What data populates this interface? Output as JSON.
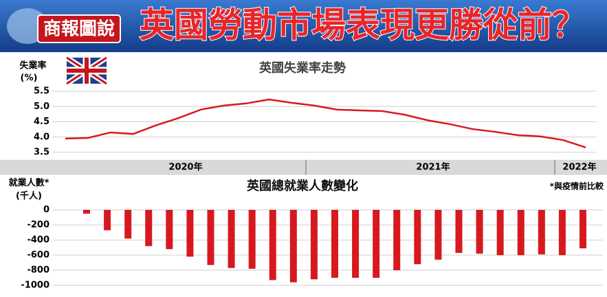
{
  "header": {
    "badge": "商報圖說",
    "title": "英國勞動市場表現更勝從前？"
  },
  "chart_data": [
    {
      "type": "line",
      "title": "英國失業率走勢",
      "ylabel": "失業率",
      "ylabel_unit": "(%)",
      "categories": [
        null,
        null,
        null,
        null,
        null,
        null,
        null,
        null,
        null,
        null,
        null,
        null,
        null,
        null,
        null,
        null,
        null,
        null,
        null,
        null,
        null,
        null,
        null,
        null
      ],
      "values": [
        3.95,
        3.97,
        4.15,
        4.1,
        4.38,
        4.62,
        4.9,
        5.03,
        5.1,
        5.23,
        5.12,
        5.03,
        4.9,
        4.87,
        4.85,
        4.73,
        4.55,
        4.42,
        4.26,
        4.17,
        4.06,
        4.02,
        3.9,
        3.66
      ],
      "color": "#d7191f",
      "ylim": [
        3.5,
        5.5
      ],
      "yticks": [
        3.5,
        {
          "value": 4,
          "label": "4.0"
        },
        4.5,
        {
          "value": 5,
          "label": "5.0"
        },
        5.5
      ],
      "year_labels": [
        "2020年",
        "2021年",
        "2022年"
      ],
      "grid": true
    },
    {
      "type": "bar",
      "title": "英國總就業人數變化",
      "ylabel": "就業人數*",
      "ylabel_unit": "(千人)",
      "note": "*與疫情前比較",
      "categories": [
        null,
        null,
        null,
        null,
        null,
        null,
        null,
        null,
        null,
        null,
        null,
        null,
        null,
        null,
        null,
        null,
        null,
        null,
        null,
        null,
        null,
        null,
        null,
        null,
        null
      ],
      "values": [
        -50,
        -270,
        -380,
        -480,
        -520,
        -620,
        -730,
        -770,
        -780,
        -930,
        -960,
        -920,
        -900,
        -900,
        -900,
        -800,
        -720,
        -660,
        -570,
        -580,
        -600,
        -600,
        -590,
        -600,
        -510
      ],
      "color": "#d7191f",
      "ylim": [
        -1000,
        0
      ],
      "yticks": [
        0,
        -200,
        -400,
        -600,
        -800,
        -1000
      ],
      "grid": true
    }
  ]
}
